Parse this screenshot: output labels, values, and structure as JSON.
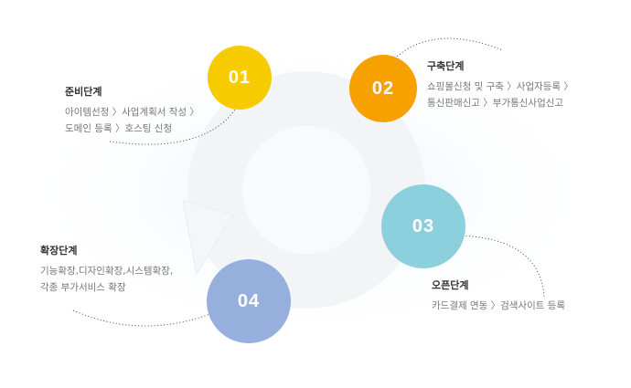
{
  "colors": {
    "step1": "#f6cb00",
    "step2": "#f7a100",
    "step3": "#8dd0dd",
    "step4": "#97afdc"
  },
  "steps": [
    {
      "number": "01",
      "title": "준비단계",
      "lines": [
        "아이템선정 〉사업계획서 작성 〉",
        "도메인 등록 〉호스팅 신청"
      ]
    },
    {
      "number": "02",
      "title": "구축단계",
      "lines": [
        "쇼핑몰신청 및 구축 〉사업자등록 〉",
        "통신판매신고 〉부가통신사업신고"
      ]
    },
    {
      "number": "03",
      "title": "오픈단계",
      "lines": [
        "카드결제 연동 〉검색사이트 등록"
      ]
    },
    {
      "number": "04",
      "title": "확장단계",
      "lines": [
        "기능확장,디자인확장,시스템확장,",
        "각종 부가서비스 확장"
      ]
    }
  ]
}
